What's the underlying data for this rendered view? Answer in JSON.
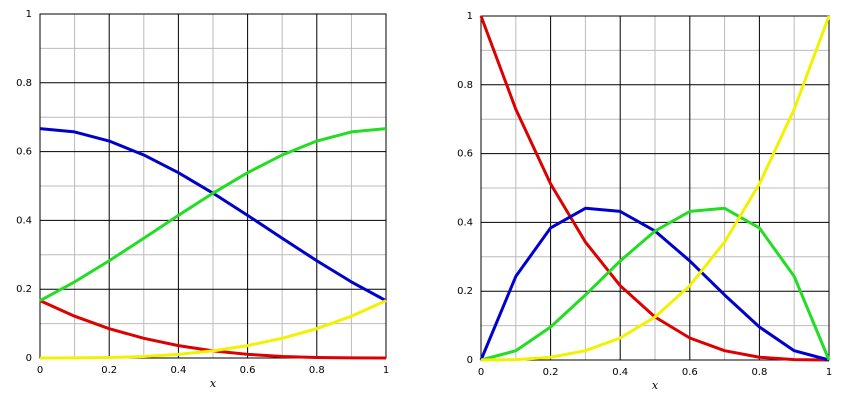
{
  "chart_data": [
    {
      "type": "line",
      "x_label": "x",
      "x": [
        0,
        0.1,
        0.2,
        0.3,
        0.4,
        0.5,
        0.6,
        0.7,
        0.8,
        0.9,
        1
      ],
      "series": [
        {
          "color": "#dd0000",
          "values": [
            0.1667,
            0.1215,
            0.0853,
            0.0572,
            0.036,
            0.0208,
            0.0107,
            0.0045,
            0.0013,
            0.0002,
            0
          ]
        },
        {
          "color": "#0000cc",
          "values": [
            0.6667,
            0.6572,
            0.6307,
            0.5902,
            0.5387,
            0.4792,
            0.4147,
            0.3482,
            0.2827,
            0.2212,
            0.1667
          ]
        },
        {
          "color": "#22dd22",
          "values": [
            0.1667,
            0.2212,
            0.2827,
            0.3482,
            0.4147,
            0.4792,
            0.5387,
            0.5902,
            0.6307,
            0.6572,
            0.6667
          ]
        },
        {
          "color": "#f2f200",
          "values": [
            0,
            0.0002,
            0.0013,
            0.0045,
            0.0107,
            0.0208,
            0.036,
            0.0572,
            0.0853,
            0.1215,
            0.1667
          ]
        }
      ],
      "xlim": [
        0,
        1
      ],
      "ylim": [
        0,
        1
      ],
      "xticks": [
        0,
        0.2,
        0.4,
        0.6,
        0.8,
        1
      ],
      "yticks": [
        0,
        0.2,
        0.4,
        0.6,
        0.8,
        1
      ],
      "grid": true
    },
    {
      "type": "line",
      "x_label": "x",
      "x": [
        0,
        0.1,
        0.2,
        0.3,
        0.4,
        0.5,
        0.6,
        0.7,
        0.8,
        0.9,
        1
      ],
      "series": [
        {
          "color": "#dd0000",
          "values": [
            1,
            0.729,
            0.512,
            0.343,
            0.216,
            0.125,
            0.064,
            0.027,
            0.008,
            0.001,
            0
          ]
        },
        {
          "color": "#0000cc",
          "values": [
            0,
            0.243,
            0.384,
            0.441,
            0.432,
            0.375,
            0.288,
            0.189,
            0.096,
            0.027,
            0
          ]
        },
        {
          "color": "#22dd22",
          "values": [
            0,
            0.027,
            0.096,
            0.189,
            0.288,
            0.375,
            0.432,
            0.441,
            0.384,
            0.243,
            0
          ]
        },
        {
          "color": "#f2f200",
          "values": [
            0,
            0.001,
            0.008,
            0.027,
            0.064,
            0.125,
            0.216,
            0.343,
            0.512,
            0.729,
            1
          ]
        }
      ],
      "xlim": [
        0,
        1
      ],
      "ylim": [
        0,
        1
      ],
      "xticks": [
        0,
        0.2,
        0.4,
        0.6,
        0.8,
        1
      ],
      "yticks": [
        0,
        0.2,
        0.4,
        0.6,
        0.8,
        1
      ],
      "grid": true
    }
  ]
}
